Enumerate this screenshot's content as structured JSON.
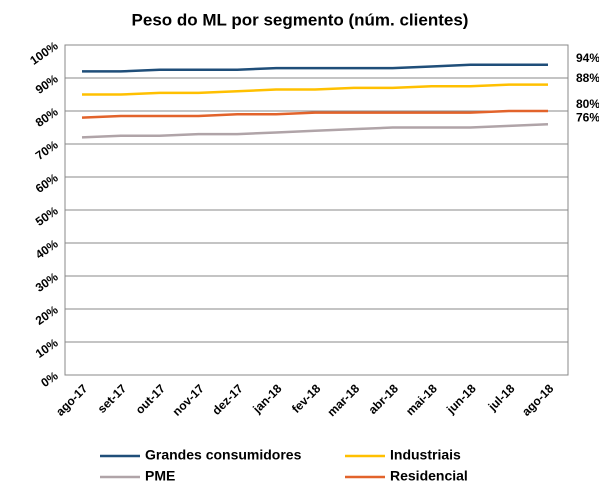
{
  "chart_data": {
    "type": "line",
    "title": "Peso do ML por segmento (núm. clientes)",
    "categories": [
      "ago-17",
      "set-17",
      "out-17",
      "nov-17",
      "dez-17",
      "jan-18",
      "fev-18",
      "mar-18",
      "abr-18",
      "mai-18",
      "jun-18",
      "jul-18",
      "ago-18"
    ],
    "series": [
      {
        "name": "Grandes consumidores",
        "color": "#1f4e79",
        "values": [
          92,
          92,
          92.5,
          92.5,
          92.5,
          93,
          93,
          93,
          93,
          93.5,
          94,
          94,
          94
        ],
        "value_labels": [
          null,
          null,
          null,
          null,
          null,
          null,
          null,
          null,
          null,
          null,
          null,
          null,
          "94%"
        ]
      },
      {
        "name": "Industriais",
        "color": "#ffc000",
        "values": [
          85,
          85,
          85.5,
          85.5,
          86,
          86.5,
          86.5,
          87,
          87,
          87.5,
          87.5,
          88,
          88
        ],
        "value_labels": [
          null,
          null,
          null,
          null,
          null,
          null,
          null,
          null,
          null,
          null,
          null,
          null,
          "88%"
        ]
      },
      {
        "name": "PME",
        "color": "#b0a4a8",
        "values": [
          72,
          72.5,
          72.5,
          73,
          73,
          73.5,
          74,
          74.5,
          75,
          75,
          75,
          75.5,
          76
        ],
        "value_labels": [
          null,
          null,
          null,
          null,
          null,
          null,
          null,
          null,
          null,
          null,
          null,
          null,
          "76%"
        ]
      },
      {
        "name": "Residencial",
        "color": "#e2632b",
        "values": [
          78,
          78.5,
          78.5,
          78.5,
          79,
          79,
          79.5,
          79.5,
          79.5,
          79.5,
          79.5,
          80,
          80
        ],
        "value_labels": [
          null,
          null,
          null,
          null,
          null,
          null,
          null,
          null,
          null,
          null,
          null,
          null,
          "80%"
        ]
      }
    ],
    "ylim": [
      0,
      100
    ],
    "yticks": [
      {
        "value": 0,
        "label": "0%"
      },
      {
        "value": 10,
        "label": "10%"
      },
      {
        "value": 20,
        "label": "20%"
      },
      {
        "value": 30,
        "label": "30%"
      },
      {
        "value": 40,
        "label": "40%"
      },
      {
        "value": 50,
        "label": "50%"
      },
      {
        "value": 60,
        "label": "60%"
      },
      {
        "value": 70,
        "label": "70%"
      },
      {
        "value": 80,
        "label": "80%"
      },
      {
        "value": 90,
        "label": "90%"
      },
      {
        "value": 100,
        "label": "100%"
      }
    ],
    "grid": true,
    "legend": "bottom"
  }
}
